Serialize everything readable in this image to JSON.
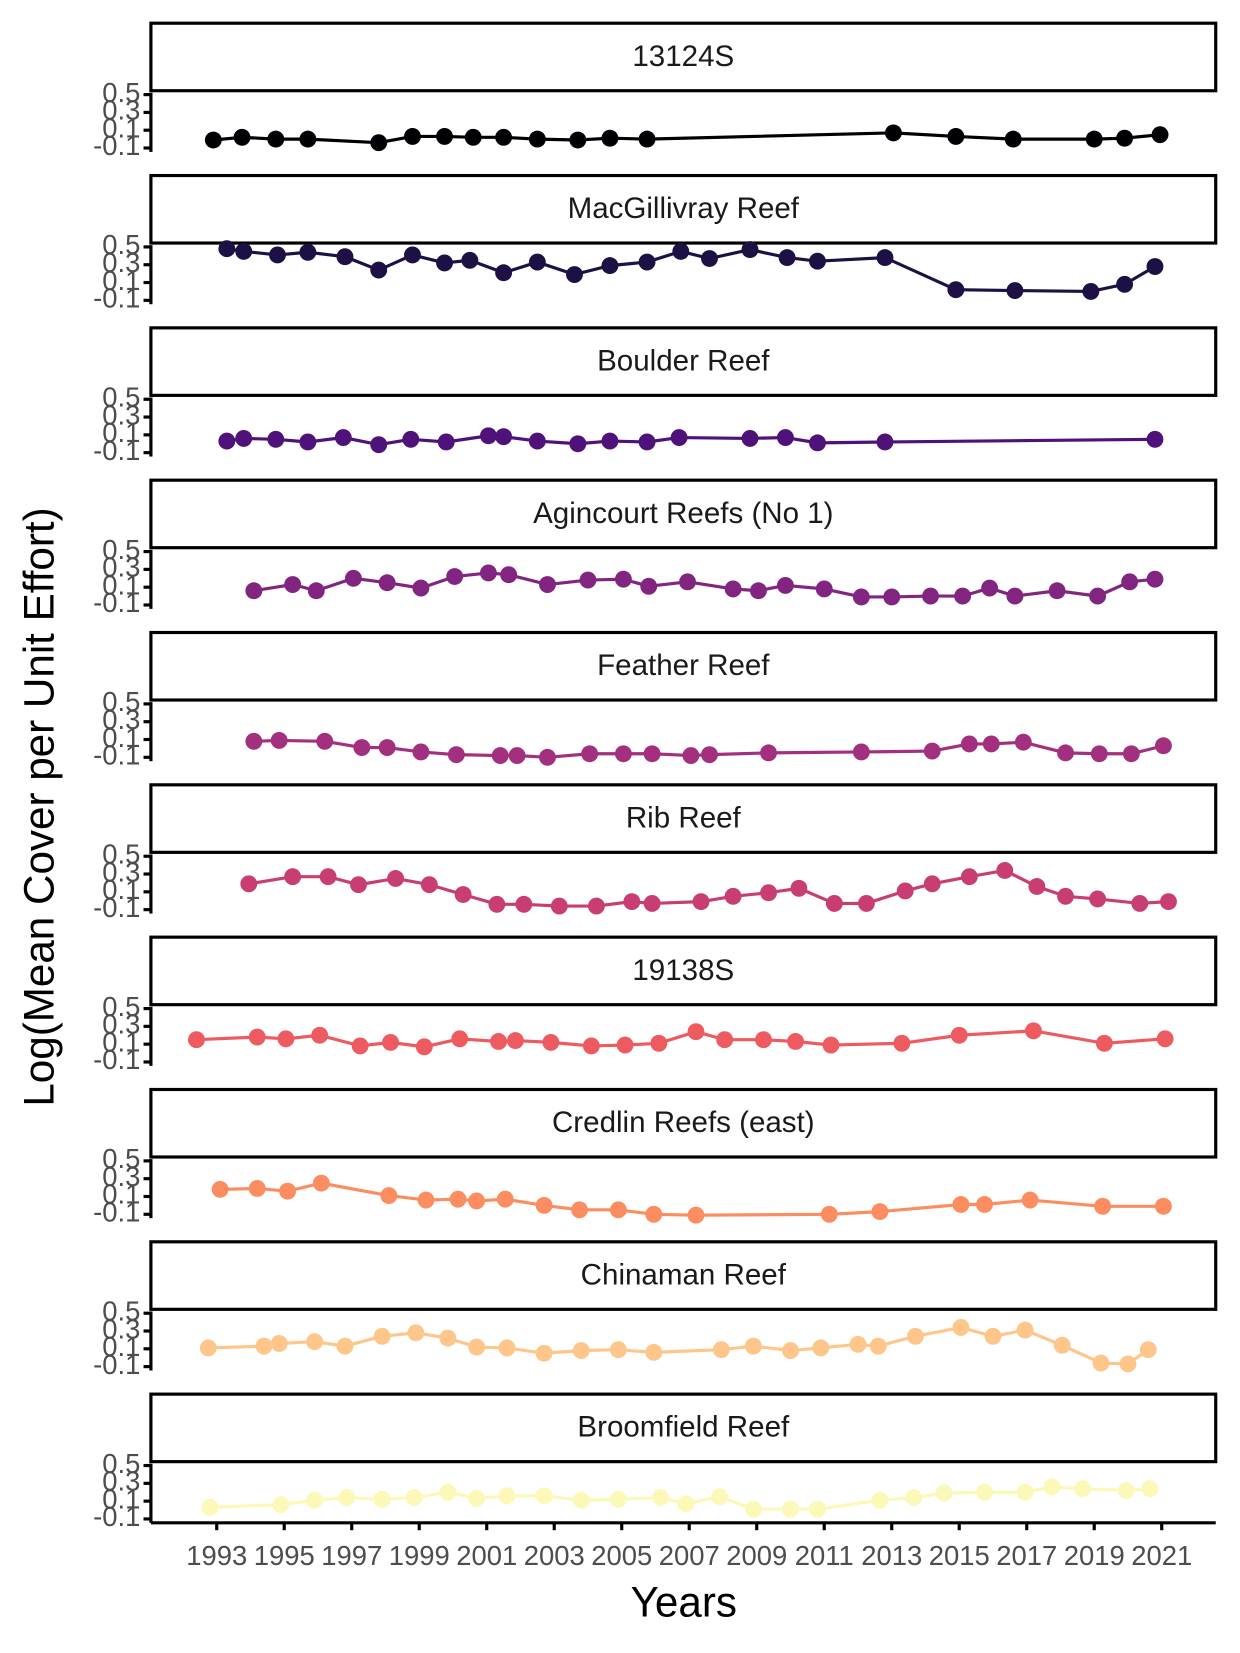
{
  "chart_data": {
    "type": "line",
    "x_label": "Years",
    "y_label": "Log(Mean Cover per Unit Effort)",
    "xlim": [
      1991.05,
      2022.6
    ],
    "xticks": [
      1993,
      1995,
      1997,
      1999,
      2001,
      2003,
      2005,
      2007,
      2009,
      2011,
      2013,
      2015,
      2017,
      2019,
      2021
    ],
    "ylim": [
      -0.12,
      0.52
    ],
    "yticks": [
      -0.1,
      0.1,
      0.3,
      0.5
    ],
    "facets": true,
    "series": [
      {
        "name": "13124S",
        "color": "#000004",
        "x": [
          1992.9,
          1993.75,
          1994.75,
          1995.7,
          1997.8,
          1998.8,
          1999.75,
          2000.6,
          2001.5,
          2002.5,
          2003.7,
          2004.65,
          2005.75,
          2013.05,
          2014.9,
          2016.6,
          2019,
          2019.9,
          2020.95
        ],
        "values": [
          -0.01,
          0.02,
          0.0,
          0.0,
          -0.04,
          0.03,
          0.03,
          0.02,
          0.02,
          0.0,
          -0.01,
          0.01,
          0.0,
          0.07,
          0.03,
          0.0,
          0.0,
          0.01,
          0.05
        ]
      },
      {
        "name": "MacGillivray Reef",
        "color": "#1c1044",
        "x": [
          1993.3,
          1993.8,
          1994.8,
          1995.7,
          1996.8,
          1997.8,
          1998.8,
          1999.75,
          2000.5,
          2001.5,
          2002.5,
          2003.6,
          2004.65,
          2005.75,
          2006.75,
          2007.6,
          2008.8,
          2009.9,
          2010.8,
          2012.8,
          2014.9,
          2016.65,
          2018.9,
          2019.9,
          2020.8
        ],
        "values": [
          0.48,
          0.45,
          0.41,
          0.44,
          0.39,
          0.24,
          0.41,
          0.32,
          0.35,
          0.21,
          0.33,
          0.19,
          0.29,
          0.33,
          0.45,
          0.37,
          0.47,
          0.38,
          0.34,
          0.38,
          0.02,
          0.01,
          0.0,
          0.08,
          0.28
        ]
      },
      {
        "name": "Boulder Reef",
        "color": "#4f127b",
        "x": [
          1993.3,
          1993.8,
          1994.75,
          1995.7,
          1996.75,
          1997.8,
          1998.75,
          1999.8,
          2001.05,
          2001.5,
          2002.5,
          2003.7,
          2004.65,
          2005.75,
          2006.7,
          2008.8,
          2009.85,
          2010.8,
          2012.8,
          2020.8
        ],
        "values": [
          0.03,
          0.06,
          0.05,
          0.02,
          0.07,
          -0.01,
          0.05,
          0.02,
          0.09,
          0.08,
          0.03,
          0.0,
          0.03,
          0.02,
          0.07,
          0.06,
          0.07,
          0.01,
          0.02,
          0.05
        ]
      },
      {
        "name": "Agincourt Reefs (No 1)",
        "color": "#812581",
        "x": [
          1994.1,
          1995.25,
          1995.95,
          1997.05,
          1998.05,
          1999.05,
          2000.05,
          2001.05,
          2001.65,
          2002.8,
          2004,
          2005.05,
          2005.8,
          2006.95,
          2008.3,
          2009.05,
          2009.85,
          2011,
          2012.1,
          2013,
          2014.15,
          2015.1,
          2015.9,
          2016.65,
          2017.9,
          2019.1,
          2020.05,
          2020.8
        ],
        "values": [
          0.06,
          0.13,
          0.06,
          0.2,
          0.15,
          0.09,
          0.22,
          0.26,
          0.24,
          0.13,
          0.18,
          0.19,
          0.11,
          0.16,
          0.08,
          0.06,
          0.12,
          0.08,
          -0.01,
          -0.01,
          0.0,
          0.0,
          0.09,
          0.0,
          0.06,
          0.0,
          0.16,
          0.19
        ]
      },
      {
        "name": "Feather Reef",
        "color": "#a3307e",
        "x": [
          1994.1,
          1994.85,
          1996.2,
          1997.3,
          1998.05,
          1999.05,
          2000.1,
          2001.4,
          2001.9,
          2002.8,
          2004.05,
          2005.05,
          2005.9,
          2007.05,
          2007.6,
          2009.35,
          2012.1,
          2014.2,
          2015.3,
          2015.95,
          2016.9,
          2018.15,
          2019.15,
          2020.1,
          2021.05
        ],
        "values": [
          0.08,
          0.09,
          0.08,
          0.01,
          0.01,
          -0.04,
          -0.07,
          -0.08,
          -0.08,
          -0.1,
          -0.06,
          -0.06,
          -0.06,
          -0.08,
          -0.07,
          -0.05,
          -0.04,
          -0.03,
          0.05,
          0.05,
          0.07,
          -0.05,
          -0.06,
          -0.06,
          0.03
        ]
      },
      {
        "name": "Rib Reef",
        "color": "#c83e73",
        "x": [
          1993.95,
          1995.25,
          1996.3,
          1997.2,
          1998.3,
          1999.3,
          2000.3,
          2001.3,
          2002.1,
          2003.15,
          2004.25,
          2005.3,
          2005.9,
          2007.35,
          2008.3,
          2009.35,
          2010.25,
          2011.3,
          2012.25,
          2013.4,
          2014.2,
          2015.3,
          2016.35,
          2017.3,
          2018.15,
          2019.1,
          2020.35,
          2021.2
        ],
        "values": [
          0.19,
          0.27,
          0.27,
          0.18,
          0.25,
          0.18,
          0.07,
          -0.04,
          -0.04,
          -0.06,
          -0.06,
          -0.01,
          -0.03,
          -0.01,
          0.05,
          0.09,
          0.14,
          -0.03,
          -0.03,
          0.11,
          0.19,
          0.27,
          0.34,
          0.16,
          0.05,
          0.02,
          -0.03,
          -0.01
        ]
      },
      {
        "name": "19138S",
        "color": "#ed5a5f",
        "x": [
          1992.4,
          1994.2,
          1995.05,
          1996.05,
          1997.25,
          1998.15,
          1999.15,
          2000.2,
          2001.35,
          2001.85,
          2002.9,
          2004.1,
          2005.1,
          2006.1,
          2007.2,
          2008.05,
          2009.2,
          2010.15,
          2011.2,
          2013.3,
          2015,
          2017.2,
          2019.3,
          2021.1
        ],
        "values": [
          0.15,
          0.18,
          0.16,
          0.2,
          0.08,
          0.12,
          0.07,
          0.16,
          0.13,
          0.14,
          0.12,
          0.08,
          0.09,
          0.11,
          0.24,
          0.15,
          0.15,
          0.13,
          0.09,
          0.11,
          0.2,
          0.25,
          0.11,
          0.16
        ]
      },
      {
        "name": "Credlin Reefs (east)",
        "color": "#fb8d61",
        "x": [
          1993.1,
          1994.2,
          1995.1,
          1996.1,
          1998.1,
          1999.2,
          2000.15,
          2000.7,
          2001.55,
          2002.7,
          2003.75,
          2004.9,
          2005.95,
          2007.2,
          2011.15,
          2012.65,
          2015.05,
          2015.75,
          2017.1,
          2019.25,
          2021.05
        ],
        "values": [
          0.18,
          0.19,
          0.16,
          0.25,
          0.11,
          0.06,
          0.07,
          0.05,
          0.07,
          0.0,
          -0.05,
          -0.05,
          -0.1,
          -0.11,
          -0.1,
          -0.07,
          0.01,
          0.01,
          0.06,
          -0.01,
          -0.01
        ]
      },
      {
        "name": "Chinaman Reef",
        "color": "#fec68b",
        "x": [
          1992.75,
          1994.4,
          1994.85,
          1995.9,
          1996.8,
          1997.9,
          1998.9,
          1999.85,
          2000.7,
          2001.6,
          2002.7,
          2003.8,
          2004.9,
          2005.95,
          2007.95,
          2008.9,
          2010,
          2010.9,
          2012,
          2012.6,
          2013.7,
          2015.05,
          2016,
          2016.95,
          2018.05,
          2019.2,
          2020,
          2020.6
        ],
        "values": [
          0.11,
          0.13,
          0.16,
          0.18,
          0.13,
          0.24,
          0.28,
          0.22,
          0.12,
          0.11,
          0.05,
          0.08,
          0.09,
          0.06,
          0.09,
          0.13,
          0.08,
          0.11,
          0.15,
          0.13,
          0.24,
          0.34,
          0.24,
          0.31,
          0.14,
          -0.06,
          -0.07,
          0.09
        ]
      },
      {
        "name": "Broomfield Reef",
        "color": "#fcf8b8",
        "x": [
          1992.8,
          1994.9,
          1995.9,
          1996.85,
          1997.9,
          1998.85,
          1999.85,
          2000.7,
          2001.6,
          2002.7,
          2003.8,
          2004.9,
          2006.15,
          2006.9,
          2007.9,
          2008.9,
          2010,
          2010.8,
          2012.65,
          2013.65,
          2014.55,
          2015.75,
          2016.95,
          2017.75,
          2018.65,
          2019.95,
          2020.65
        ],
        "values": [
          0.03,
          0.06,
          0.11,
          0.14,
          0.12,
          0.14,
          0.2,
          0.13,
          0.16,
          0.16,
          0.11,
          0.12,
          0.14,
          0.07,
          0.15,
          0.01,
          0.01,
          0.01,
          0.11,
          0.14,
          0.19,
          0.2,
          0.2,
          0.26,
          0.24,
          0.22,
          0.24
        ]
      }
    ]
  }
}
